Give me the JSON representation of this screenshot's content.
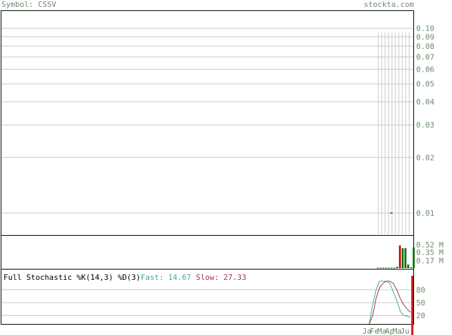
{
  "header": {
    "symbol": "Symbol: CSSV",
    "site": "stockta.com"
  },
  "colors": {
    "grid": "#c8c8c8",
    "axis_text": "#6e8b6e",
    "up_bar": "#1a7a1a",
    "down_bar": "#d01a1a",
    "fast_line": "#3aa8a0",
    "slow_line": "#a0325a"
  },
  "chart_data": [
    {
      "type": "line",
      "name": "price",
      "yscale": "log",
      "ylim": [
        0.008,
        0.11
      ],
      "y_ticks": [
        "0.10",
        "0.09",
        "0.08",
        "0.07",
        "0.06",
        "0.05",
        "0.04",
        "0.03",
        "0.02",
        "0.01"
      ],
      "y_tick_values": [
        0.1,
        0.09,
        0.08,
        0.07,
        0.06,
        0.05,
        0.04,
        0.03,
        0.02,
        0.01
      ],
      "price_marks": [
        0.01,
        0.01
      ]
    },
    {
      "type": "bar",
      "name": "volume",
      "y_ticks": [
        "0.52 M",
        "0.35 M",
        "0.17 M"
      ],
      "y_tick_values": [
        0.52,
        0.35,
        0.17
      ],
      "ylim": [
        0,
        0.7
      ],
      "values": [
        0.01,
        0.01,
        0.01,
        0.01,
        0.01,
        0.01,
        0.01,
        0.03,
        0.5,
        0.44,
        0.44,
        0.08,
        0.02,
        0.46
      ],
      "colors": [
        "up",
        "up",
        "up",
        "up",
        "up",
        "up",
        "up",
        "up",
        "down",
        "up",
        "up",
        "up",
        "up",
        "up"
      ]
    },
    {
      "type": "line",
      "name": "stochastic",
      "title": "Full Stochastic %K(14,3) %D(3)",
      "fast_label": "Fast: 14.67",
      "slow_label": "Slow: 27.33",
      "y_ticks": [
        "80",
        "50",
        "20"
      ],
      "y_tick_values": [
        80,
        50,
        20
      ],
      "ylim": [
        0,
        100
      ],
      "fast": [
        0,
        45,
        80,
        100,
        100,
        100,
        95,
        75,
        55,
        30,
        20,
        18,
        15
      ],
      "slow": [
        0,
        20,
        60,
        85,
        95,
        100,
        100,
        95,
        80,
        60,
        45,
        35,
        27
      ],
      "x_labels": [
        "Ja",
        "Fe",
        "Ma",
        "Ap",
        "Ma",
        "Ju"
      ]
    }
  ]
}
